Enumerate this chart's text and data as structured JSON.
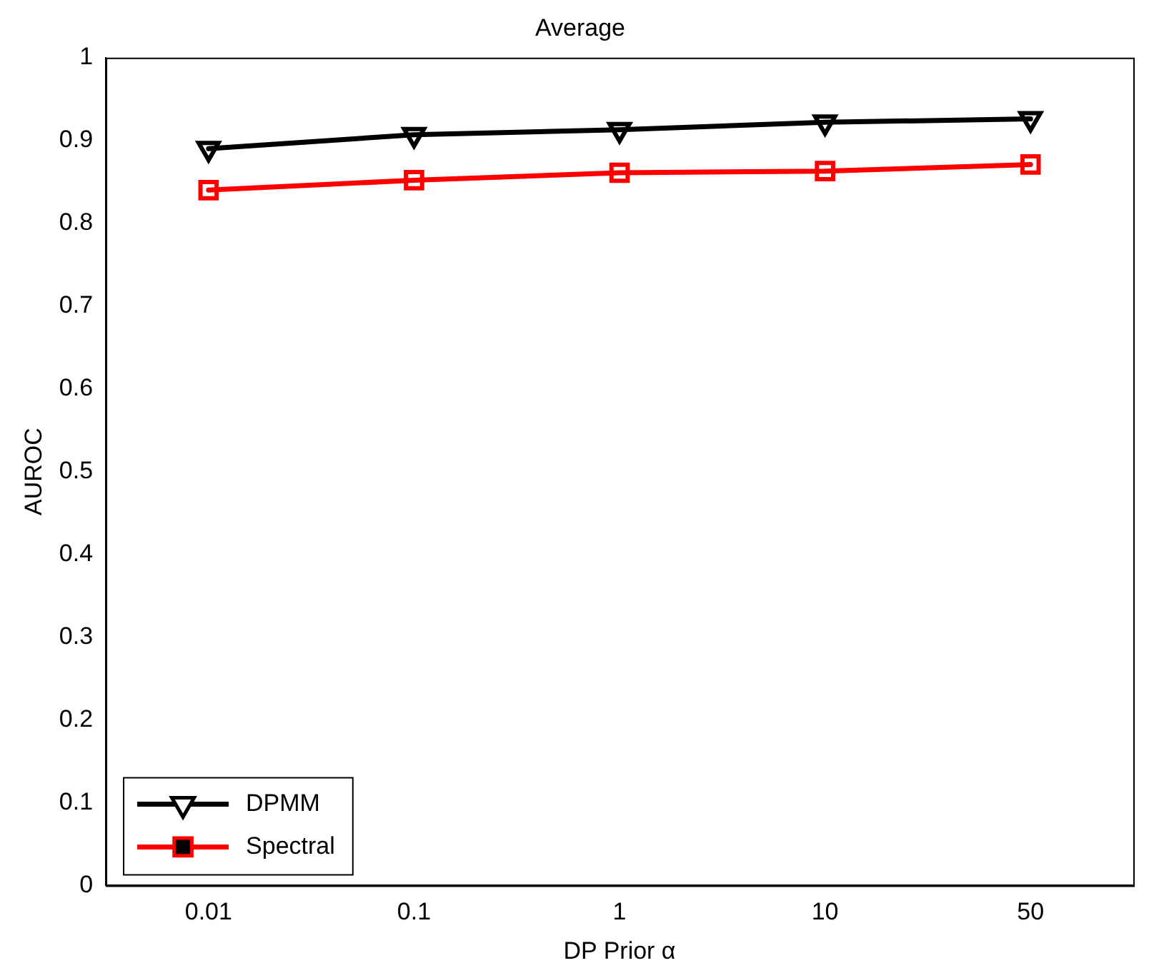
{
  "chart_data": {
    "type": "line",
    "title": "Average",
    "xlabel": "DP Prior α",
    "ylabel": "AUROC",
    "categories": [
      "0.01",
      "0.1",
      "1",
      "10",
      "50"
    ],
    "series": [
      {
        "name": "DPMM",
        "color": "#000000",
        "marker": "triangle",
        "values": [
          0.89,
          0.907,
          0.913,
          0.922,
          0.926
        ]
      },
      {
        "name": "Spectral",
        "color": "#ff0000",
        "marker": "square",
        "values": [
          0.84,
          0.852,
          0.861,
          0.863,
          0.871
        ]
      }
    ],
    "ylim": [
      0,
      1
    ],
    "yticks": [
      0,
      0.1,
      0.2,
      0.3,
      0.4,
      0.5,
      0.6,
      0.7,
      0.8,
      0.9,
      1
    ],
    "grid": false,
    "legend": "bottom left"
  }
}
